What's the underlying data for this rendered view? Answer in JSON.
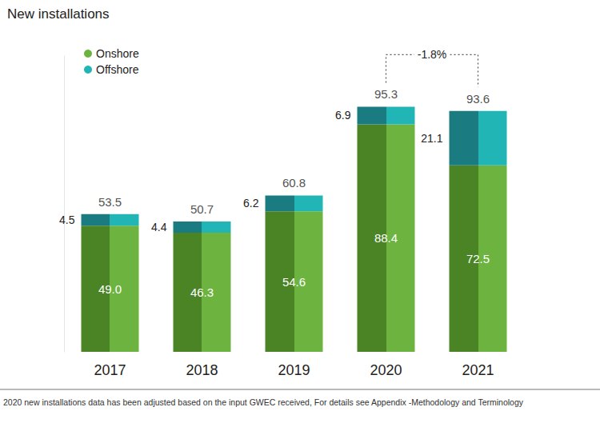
{
  "chart_data": {
    "type": "bar",
    "title": "New installations",
    "categories": [
      "2017",
      "2018",
      "2019",
      "2020",
      "2021"
    ],
    "series": [
      {
        "name": "Onshore",
        "color": "#6db33f",
        "values": [
          49.0,
          46.3,
          54.6,
          88.4,
          72.5
        ],
        "value_labels": [
          "49.0",
          "46.3",
          "54.6",
          "88.4",
          "72.5"
        ]
      },
      {
        "name": "Offshore",
        "color": "#22b5b5",
        "values": [
          4.5,
          4.4,
          6.2,
          6.9,
          21.1
        ]
      }
    ],
    "totals": [
      53.5,
      50.7,
      60.8,
      95.3,
      93.6
    ],
    "annotation": "-1.8%",
    "note": "2020 new installations data has been adjusted based on the input GWEC received, For details see Appendix -Methodology and Terminology",
    "stacked": true,
    "data_labels": true,
    "legend": "top-left",
    "tick_labels": "x",
    "grid": false,
    "ylim": [
      0,
      115
    ],
    "yticks": []
  }
}
